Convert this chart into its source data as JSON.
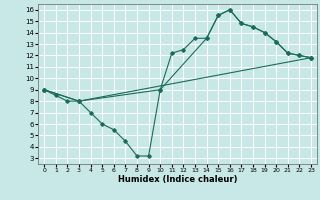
{
  "xlabel": "Humidex (Indice chaleur)",
  "bg_color": "#c8e8e8",
  "grid_color": "#ffffff",
  "line_color": "#1a6b5a",
  "xlim": [
    -0.5,
    23.5
  ],
  "ylim": [
    2.5,
    16.5
  ],
  "xticks": [
    0,
    1,
    2,
    3,
    4,
    5,
    6,
    7,
    8,
    9,
    10,
    11,
    12,
    13,
    14,
    15,
    16,
    17,
    18,
    19,
    20,
    21,
    22,
    23
  ],
  "yticks": [
    3,
    4,
    5,
    6,
    7,
    8,
    9,
    10,
    11,
    12,
    13,
    14,
    15,
    16
  ],
  "line1_zigzag": {
    "x": [
      0,
      1,
      2,
      3,
      4,
      5,
      6,
      7,
      8,
      9,
      10,
      11,
      12,
      13,
      14,
      15,
      16,
      17,
      18,
      19,
      20,
      21,
      22,
      23
    ],
    "y": [
      9.0,
      8.5,
      8.0,
      8.0,
      7.0,
      6.0,
      5.5,
      4.5,
      3.2,
      3.2,
      9.0,
      12.2,
      12.5,
      13.5,
      13.5,
      15.5,
      16.0,
      14.8,
      14.5,
      14.0,
      13.2,
      12.2,
      12.0,
      11.8
    ]
  },
  "line2_upper": {
    "x": [
      0,
      3,
      10,
      14,
      15,
      16,
      17,
      18,
      19,
      20,
      21,
      22,
      23
    ],
    "y": [
      9.0,
      8.0,
      9.0,
      13.5,
      15.5,
      16.0,
      14.8,
      14.5,
      14.0,
      13.2,
      12.2,
      12.0,
      11.8
    ]
  },
  "line3_straight": {
    "x": [
      0,
      3,
      23
    ],
    "y": [
      9.0,
      8.0,
      11.8
    ]
  }
}
